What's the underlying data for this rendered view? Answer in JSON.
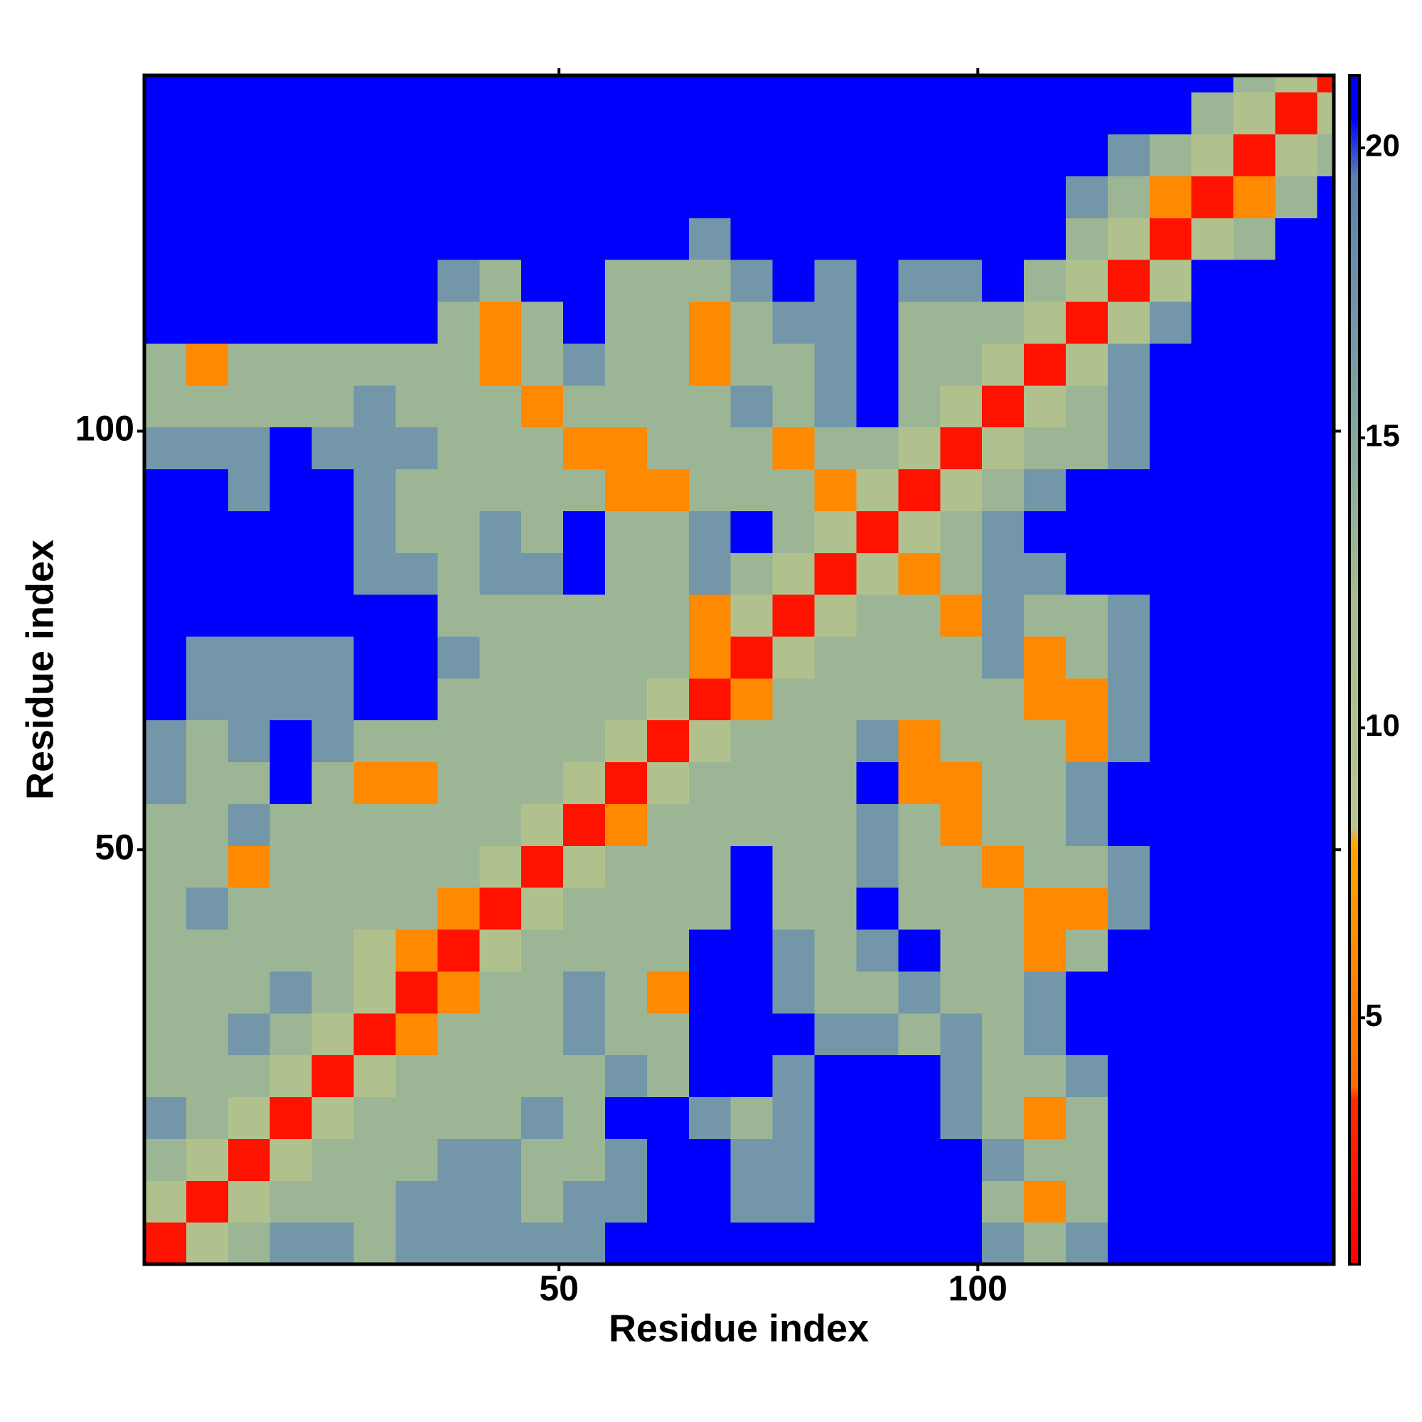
{
  "chart_data": {
    "type": "heatmap",
    "xlabel": "Residue index",
    "ylabel": "Residue index",
    "xlim": [
      0.5,
      142.5
    ],
    "ylim": [
      0.5,
      142.5
    ],
    "xticks": [
      50,
      100
    ],
    "yticks": [
      50,
      100
    ],
    "zlim": [
      0.75,
      21.25
    ],
    "zticks": [
      5,
      10,
      15,
      20
    ],
    "colorscale": [
      {
        "value": 0.75,
        "color": "#ff0000"
      },
      {
        "value": 3.6,
        "color": "#ff2a00"
      },
      {
        "value": 3.8,
        "color": "#ff6a00"
      },
      {
        "value": 8,
        "color": "#ffa500"
      },
      {
        "value": 8.3,
        "color": "#b9c48c"
      },
      {
        "value": 12,
        "color": "#a6be90"
      },
      {
        "value": 19.5,
        "color": "#5a82b4"
      },
      {
        "value": 20.5,
        "color": "#0000ff"
      },
      {
        "value": 21.25,
        "color": "#0000ff"
      }
    ],
    "xbins": [
      0.5,
      5.5,
      10.5,
      15.5,
      20.5,
      25.5,
      30.5,
      35.5,
      40.5,
      45.5,
      50.5,
      55.5,
      60.5,
      65.5,
      70.5,
      75.5,
      80.5,
      85.5,
      90.5,
      95.5,
      100.5,
      105.5,
      110.5,
      115.5,
      120.5,
      125.5,
      130.5,
      135.5,
      140.5,
      142.5
    ],
    "ybins": [
      0.5,
      5.5,
      10.5,
      15.5,
      20.5,
      25.5,
      30.5,
      35.5,
      40.5,
      45.5,
      50.5,
      55.5,
      60.5,
      65.5,
      70.5,
      75.5,
      80.5,
      85.5,
      90.5,
      95.5,
      100.5,
      105.5,
      110.5,
      115.5,
      120.5,
      125.5,
      130.5,
      135.5,
      140.5,
      142.5
    ],
    "z": [
      [
        2,
        10,
        13,
        17,
        17,
        13,
        17,
        17,
        17,
        17,
        17,
        21,
        21,
        21,
        21,
        21,
        21,
        21,
        21,
        21,
        17,
        13,
        17,
        21,
        21,
        21,
        21,
        21,
        21
      ],
      [
        10,
        2,
        10,
        13,
        13,
        13,
        17,
        17,
        17,
        13,
        17,
        17,
        21,
        21,
        17,
        17,
        21,
        21,
        21,
        21,
        13,
        6,
        13,
        21,
        21,
        21,
        21,
        21,
        21
      ],
      [
        13,
        10,
        2,
        10,
        13,
        13,
        13,
        17,
        17,
        13,
        13,
        17,
        21,
        21,
        17,
        17,
        21,
        21,
        21,
        21,
        17,
        13,
        13,
        21,
        21,
        21,
        21,
        21,
        21
      ],
      [
        17,
        13,
        10,
        2,
        10,
        13,
        13,
        13,
        13,
        17,
        13,
        21,
        21,
        17,
        13,
        17,
        21,
        21,
        21,
        17,
        13,
        6,
        13,
        21,
        21,
        21,
        21,
        21,
        21
      ],
      [
        13,
        13,
        13,
        10,
        2,
        10,
        13,
        13,
        13,
        13,
        13,
        17,
        13,
        21,
        21,
        17,
        21,
        21,
        21,
        17,
        13,
        13,
        17,
        21,
        21,
        21,
        21,
        21,
        21
      ],
      [
        13,
        13,
        17,
        13,
        10,
        2,
        6,
        13,
        13,
        13,
        17,
        13,
        13,
        21,
        21,
        21,
        17,
        17,
        13,
        17,
        13,
        17,
        21,
        21,
        21,
        21,
        21,
        21,
        21
      ],
      [
        13,
        13,
        13,
        17,
        13,
        10,
        2,
        6,
        13,
        13,
        17,
        13,
        6,
        21,
        21,
        17,
        13,
        13,
        17,
        13,
        13,
        17,
        21,
        21,
        21,
        21,
        21,
        21,
        21
      ],
      [
        13,
        13,
        13,
        13,
        13,
        10,
        6,
        2,
        10,
        13,
        13,
        13,
        13,
        21,
        21,
        17,
        13,
        17,
        21,
        13,
        13,
        6,
        13,
        21,
        21,
        21,
        21,
        21,
        21
      ],
      [
        13,
        17,
        13,
        13,
        13,
        13,
        13,
        6,
        2,
        10,
        13,
        13,
        13,
        13,
        21,
        13,
        13,
        21,
        13,
        13,
        13,
        6,
        6,
        17,
        21,
        21,
        21,
        21,
        21
      ],
      [
        13,
        13,
        6,
        13,
        13,
        13,
        13,
        13,
        10,
        2,
        10,
        13,
        13,
        13,
        21,
        13,
        13,
        17,
        13,
        13,
        6,
        13,
        13,
        17,
        21,
        21,
        21,
        21,
        21
      ],
      [
        13,
        13,
        17,
        13,
        13,
        13,
        13,
        13,
        13,
        10,
        2,
        6,
        13,
        13,
        13,
        13,
        13,
        17,
        13,
        6,
        13,
        13,
        17,
        21,
        21,
        21,
        21,
        21,
        21
      ],
      [
        17,
        13,
        13,
        21,
        13,
        6,
        6,
        13,
        13,
        13,
        10,
        2,
        10,
        13,
        13,
        13,
        13,
        21,
        6,
        6,
        13,
        13,
        17,
        21,
        21,
        21,
        21,
        21,
        21
      ],
      [
        17,
        13,
        17,
        21,
        17,
        13,
        13,
        13,
        13,
        13,
        13,
        10,
        2,
        10,
        13,
        13,
        13,
        17,
        6,
        13,
        13,
        13,
        6,
        17,
        21,
        21,
        21,
        21,
        21
      ],
      [
        21,
        17,
        17,
        17,
        17,
        21,
        21,
        13,
        13,
        13,
        13,
        13,
        10,
        2,
        6,
        13,
        13,
        13,
        13,
        13,
        13,
        6,
        6,
        17,
        21,
        21,
        21,
        21,
        21
      ],
      [
        21,
        17,
        17,
        17,
        17,
        21,
        21,
        17,
        13,
        13,
        13,
        13,
        13,
        6,
        2,
        10,
        13,
        13,
        13,
        13,
        17,
        6,
        13,
        17,
        21,
        21,
        21,
        21,
        21
      ],
      [
        21,
        21,
        21,
        21,
        21,
        21,
        21,
        13,
        13,
        13,
        13,
        13,
        13,
        6,
        10,
        2,
        10,
        13,
        13,
        6,
        17,
        13,
        13,
        17,
        21,
        21,
        21,
        21,
        21
      ],
      [
        21,
        21,
        21,
        21,
        21,
        17,
        17,
        13,
        17,
        17,
        21,
        13,
        13,
        17,
        13,
        10,
        2,
        10,
        6,
        13,
        17,
        17,
        21,
        21,
        21,
        21,
        21,
        21,
        21
      ],
      [
        21,
        21,
        21,
        21,
        21,
        17,
        13,
        13,
        17,
        13,
        21,
        13,
        13,
        17,
        21,
        13,
        10,
        2,
        10,
        13,
        17,
        21,
        21,
        21,
        21,
        21,
        21,
        21,
        21
      ],
      [
        21,
        21,
        17,
        21,
        21,
        17,
        13,
        13,
        13,
        13,
        13,
        6,
        6,
        13,
        13,
        13,
        6,
        10,
        2,
        10,
        13,
        17,
        21,
        21,
        21,
        21,
        21,
        21,
        21
      ],
      [
        17,
        17,
        17,
        21,
        17,
        17,
        17,
        13,
        13,
        13,
        6,
        6,
        13,
        13,
        13,
        6,
        13,
        13,
        10,
        2,
        10,
        13,
        13,
        17,
        21,
        21,
        21,
        21,
        21
      ],
      [
        13,
        13,
        13,
        13,
        13,
        17,
        13,
        13,
        13,
        6,
        13,
        13,
        13,
        13,
        17,
        13,
        17,
        21,
        13,
        10,
        2,
        10,
        13,
        17,
        21,
        21,
        21,
        21,
        21
      ],
      [
        13,
        6,
        13,
        13,
        13,
        13,
        13,
        13,
        6,
        13,
        17,
        13,
        13,
        6,
        13,
        13,
        17,
        21,
        13,
        13,
        10,
        2,
        10,
        17,
        21,
        21,
        21,
        21,
        21
      ],
      [
        21,
        21,
        21,
        21,
        21,
        21,
        21,
        13,
        6,
        13,
        21,
        13,
        13,
        6,
        13,
        17,
        17,
        21,
        13,
        13,
        13,
        10,
        2,
        10,
        17,
        21,
        21,
        21,
        21
      ],
      [
        21,
        21,
        21,
        21,
        21,
        21,
        21,
        17,
        13,
        21,
        21,
        13,
        13,
        13,
        17,
        21,
        17,
        21,
        17,
        17,
        21,
        13,
        10,
        2,
        10,
        21,
        21,
        21,
        21
      ],
      [
        21,
        21,
        21,
        21,
        21,
        21,
        21,
        21,
        21,
        21,
        21,
        21,
        21,
        17,
        21,
        21,
        21,
        21,
        21,
        21,
        21,
        21,
        13,
        10,
        2,
        10,
        13,
        21,
        21
      ],
      [
        21,
        21,
        21,
        21,
        21,
        21,
        21,
        21,
        21,
        21,
        21,
        21,
        21,
        21,
        21,
        21,
        21,
        21,
        21,
        21,
        21,
        21,
        17,
        13,
        6,
        2,
        6,
        13,
        21
      ],
      [
        21,
        21,
        21,
        21,
        21,
        21,
        21,
        21,
        21,
        21,
        21,
        21,
        21,
        21,
        21,
        21,
        21,
        21,
        21,
        21,
        21,
        21,
        21,
        17,
        13,
        10,
        2,
        10,
        13
      ],
      [
        21,
        21,
        21,
        21,
        21,
        21,
        21,
        21,
        21,
        21,
        21,
        21,
        21,
        21,
        21,
        21,
        21,
        21,
        21,
        21,
        21,
        21,
        21,
        21,
        21,
        13,
        10,
        2,
        10
      ],
      [
        21,
        21,
        21,
        21,
        21,
        21,
        21,
        21,
        21,
        21,
        21,
        21,
        21,
        21,
        21,
        21,
        21,
        21,
        21,
        21,
        21,
        21,
        21,
        21,
        21,
        21,
        13,
        10,
        2
      ]
    ]
  }
}
